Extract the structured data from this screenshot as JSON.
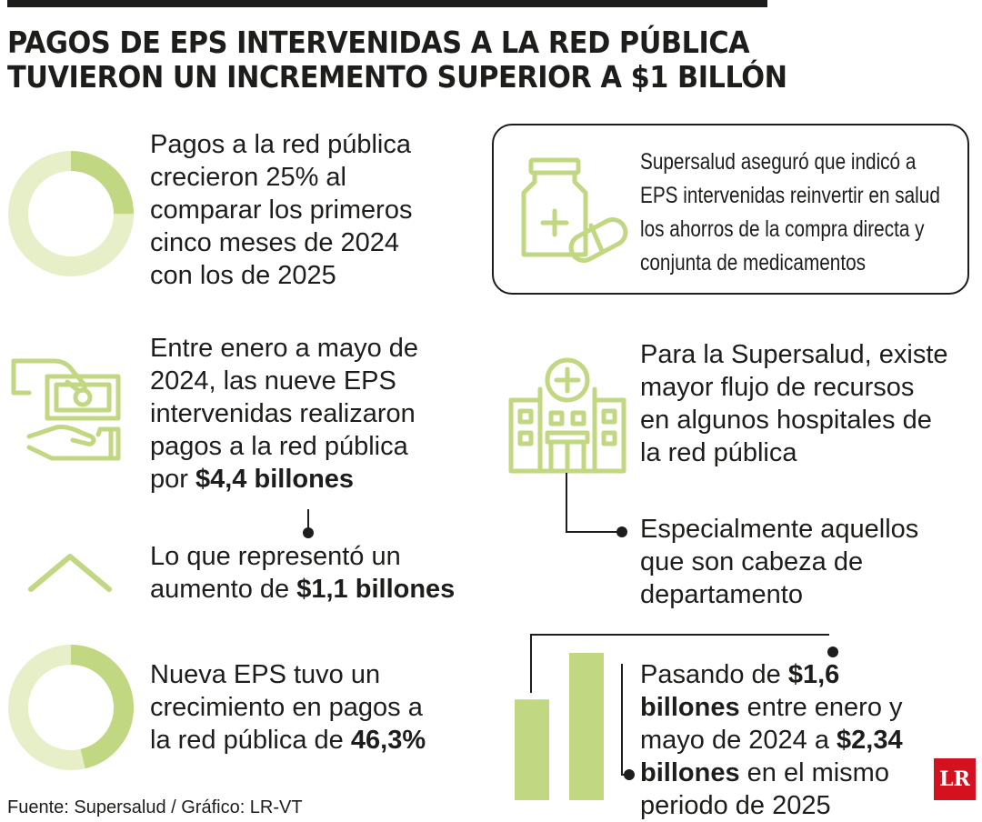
{
  "title": {
    "line1": "PAGOS DE EPS INTERVENIDAS A LA RED PÚBLICA",
    "line2": "TUVIERON UN INCREMENTO SUPERIOR A $1 BILLÓN"
  },
  "colors": {
    "accent": "#c1d781",
    "accent_light": "#e6efc7",
    "text": "#1d1d1b",
    "logo": "#d4111e"
  },
  "left": {
    "block1": {
      "lines": [
        "Pagos a la red pública",
        "crecieron 25% al",
        "comparar los primeros",
        "cinco meses de 2024",
        "con los de 2025"
      ],
      "donut_fraction": 0.25
    },
    "block2": {
      "lines": [
        "Entre enero a mayo de",
        "2024, las nueve EPS",
        "intervenidas realizaron",
        "pagos a la red pública"
      ],
      "last_prefix": "por ",
      "last_bold": "$4,4 billones",
      "icon": "money-hand-icon"
    },
    "block3": {
      "line1": "Lo que representó un",
      "line2_prefix": "aumento de ",
      "line2_bold": "$1,1 billones",
      "icon": "chevron-up-icon"
    },
    "block4": {
      "line1": "Nueva EPS tuvo un",
      "line2": "crecimiento en pagos a",
      "line3_prefix": "la red pública de ",
      "line3_bold": "46,3%",
      "donut_fraction": 0.463
    }
  },
  "right": {
    "box": {
      "lines": [
        "Supersalud aseguró que indicó a",
        "EPS intervenidas reinvertir en salud",
        "los ahorros de la compra directa y",
        "conjunta de medicamentos"
      ],
      "icon": "medicine-icon"
    },
    "block2": {
      "lines": [
        "Para la Supersalud, existe",
        "mayor flujo de recursos",
        "en algunos hospitales de",
        "la red pública"
      ],
      "icon": "hospital-icon"
    },
    "block3": {
      "lines": [
        "Especialmente aquellos",
        "que son cabeza de",
        "departamento"
      ]
    },
    "block4": {
      "line1_prefix": "Pasando de ",
      "line1_bold": "$1,6",
      "line2_bold": "billones",
      "line2_suffix": " entre enero y",
      "line3_prefix": "mayo de 2024 a ",
      "line3_bold": "$2,34",
      "line4_bold": "billones",
      "line4_suffix": " en el mismo",
      "line5": "periodo de 2025",
      "bars": [
        1.6,
        2.34
      ]
    }
  },
  "footer": {
    "text": "Fuente: Supersalud  / Gráfico: LR-VT"
  },
  "logo": {
    "text": "LR"
  }
}
